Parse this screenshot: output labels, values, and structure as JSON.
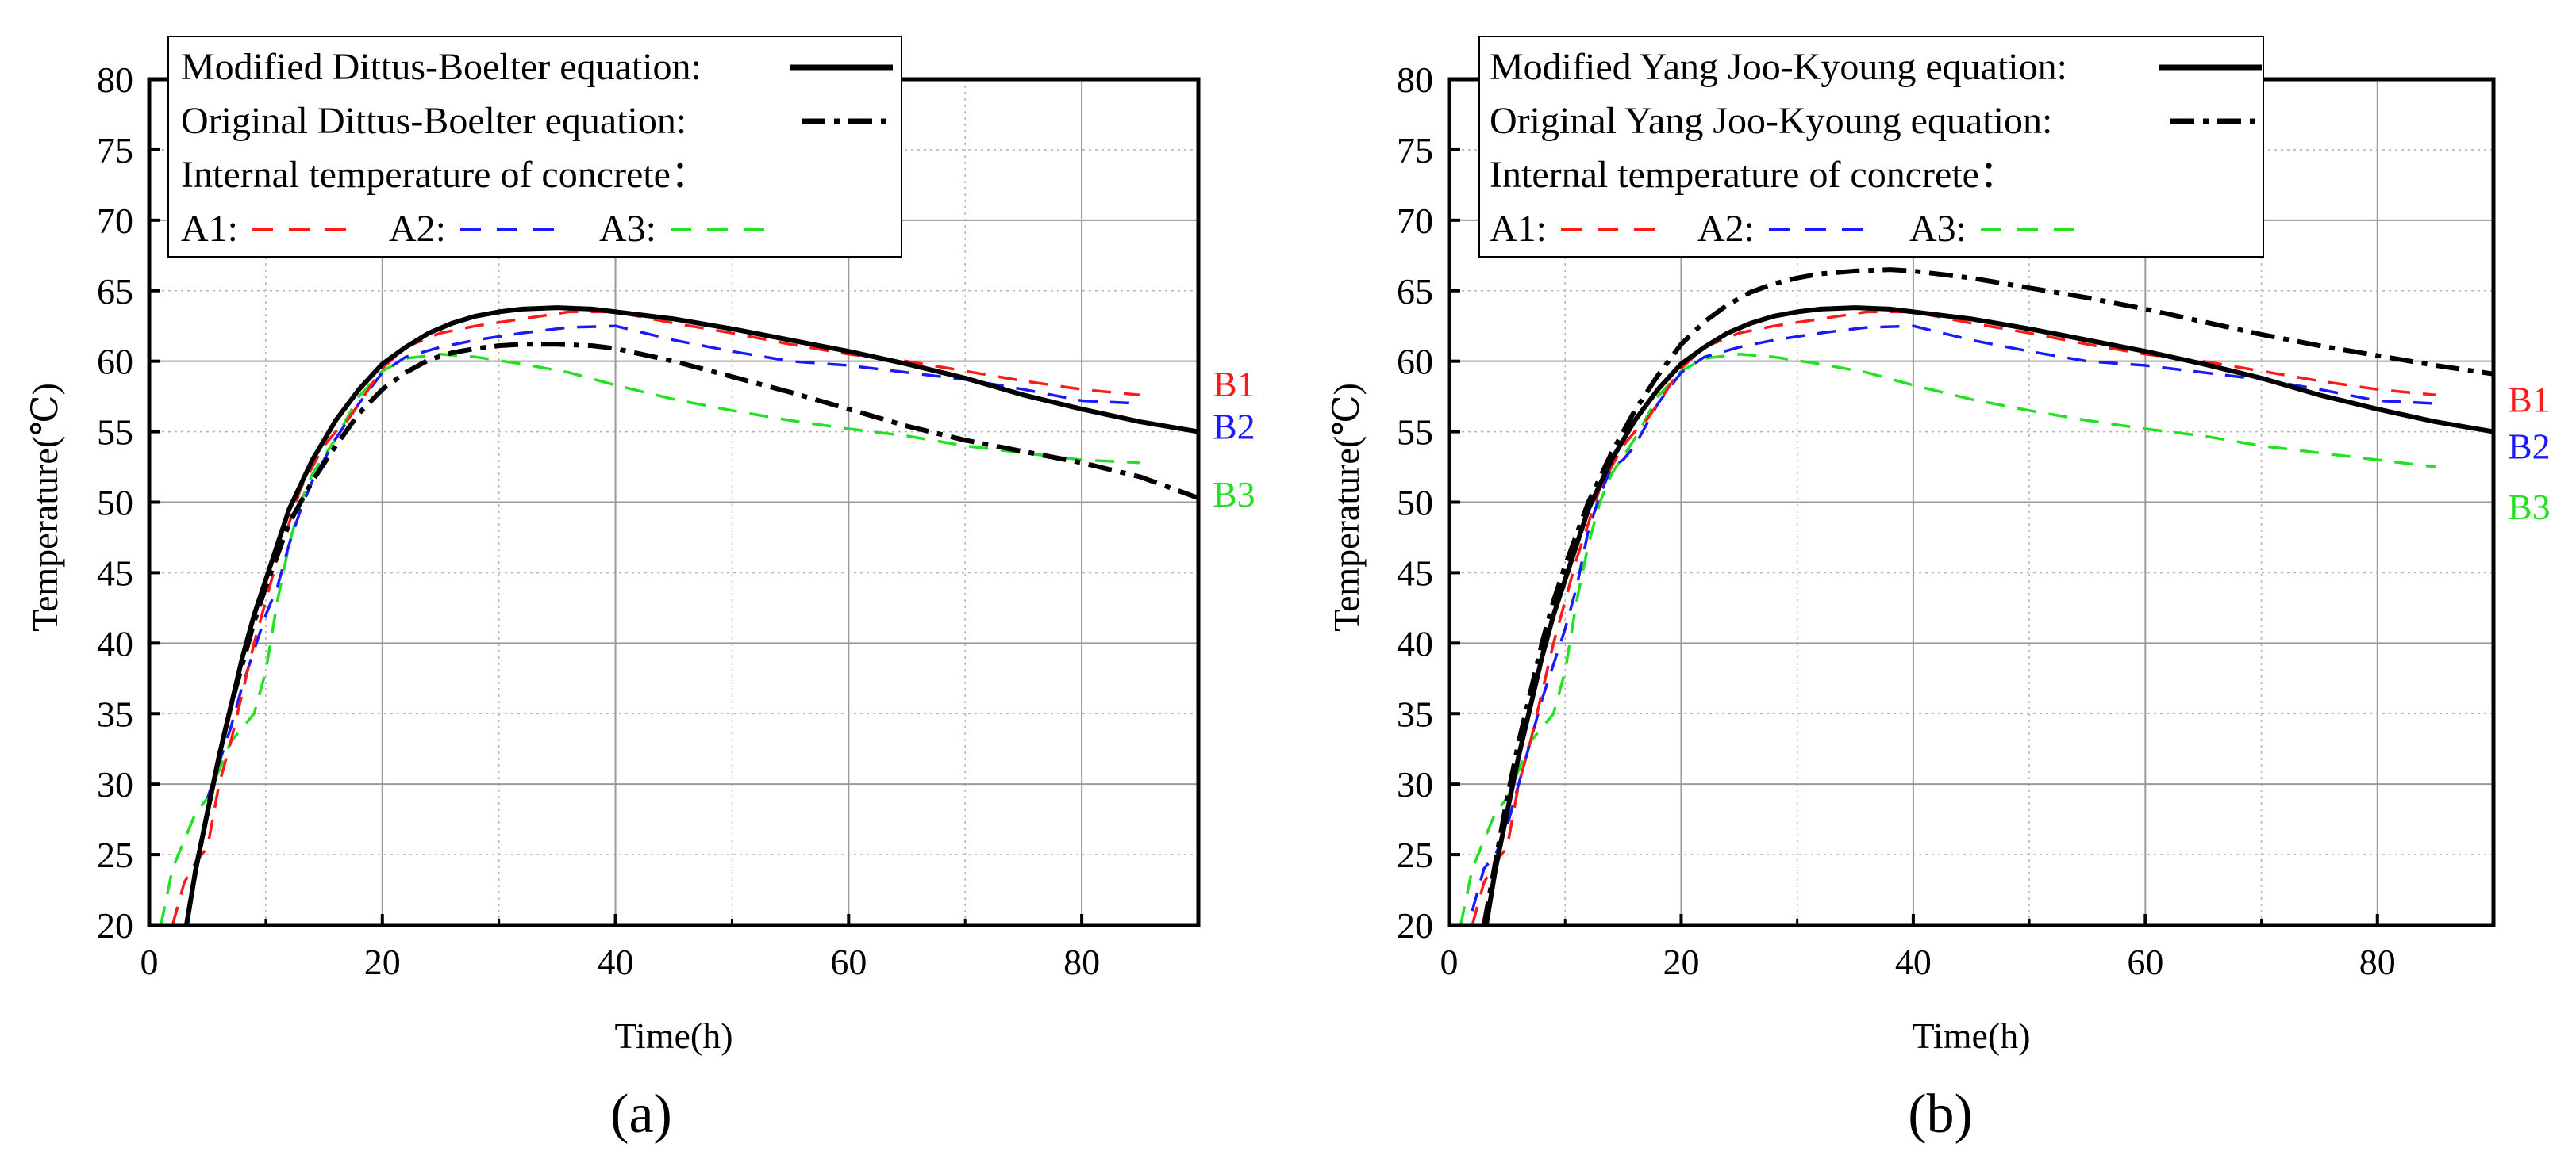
{
  "figure": {
    "panels": [
      "(a)",
      "(b)"
    ]
  },
  "colors": {
    "modified": "#000000",
    "original": "#000000",
    "A1": "#ff1a1a",
    "A2": "#1a1aff",
    "A3": "#22e022",
    "grid": "#b4b4b4",
    "frame": "#000000"
  },
  "chart_data": [
    {
      "type": "line",
      "panel_label": "(a)",
      "xlabel": "Time(h)",
      "ylabel": "Temperature(℃)",
      "xlim": [
        0,
        90
      ],
      "ylim": [
        20,
        80
      ],
      "xticks": [
        0,
        20,
        40,
        60,
        80
      ],
      "yticks": [
        20,
        25,
        30,
        35,
        40,
        45,
        50,
        55,
        60,
        65,
        70,
        75,
        80
      ],
      "grid": true,
      "legend": {
        "placement": "top-left",
        "entries": {
          "modified": "Modified Dittus-Boelter equation:",
          "original": "Original Dittus-Boelter equation:",
          "internal": "Internal temperature of concrete：",
          "A1": "A1:",
          "A2": "A2:",
          "A3": "A3:"
        }
      },
      "annotations": [
        {
          "text": "B1",
          "x": 93,
          "y": 58.4,
          "color": "#ff1a1a"
        },
        {
          "text": "B2",
          "x": 93,
          "y": 55.4,
          "color": "#1a1aff"
        },
        {
          "text": "B3",
          "x": 93,
          "y": 50.6,
          "color": "#22e022"
        }
      ],
      "series": [
        {
          "name": "Modified Dittus-Boelter equation",
          "key": "modified",
          "style": "solid",
          "x": [
            3.2,
            4,
            5,
            6,
            7,
            8,
            9,
            10,
            11,
            12,
            14,
            16,
            18,
            20,
            22,
            24,
            26,
            28,
            30,
            32,
            35,
            38,
            40,
            45,
            50,
            55,
            60,
            65,
            70,
            75,
            80,
            85,
            90
          ],
          "y": [
            20,
            24,
            28,
            32,
            35.5,
            39,
            42,
            44.5,
            47,
            49.5,
            53,
            55.8,
            58,
            59.8,
            61,
            62,
            62.7,
            63.2,
            63.5,
            63.7,
            63.8,
            63.7,
            63.5,
            63,
            62.3,
            61.5,
            60.7,
            59.8,
            58.8,
            57.6,
            56.6,
            55.7,
            55
          ]
        },
        {
          "name": "Original Dittus-Boelter equation",
          "key": "original",
          "style": "dashdot",
          "x": [
            3.2,
            4,
            5,
            6,
            7,
            8,
            9,
            10,
            12,
            14,
            16,
            18,
            20,
            22,
            24,
            26,
            28,
            30,
            32,
            35,
            38,
            40,
            45,
            50,
            55,
            60,
            65,
            70,
            75,
            80,
            85,
            90
          ],
          "y": [
            20,
            24,
            28,
            32,
            35.5,
            38.5,
            41.5,
            44,
            48.5,
            51.5,
            54,
            56.3,
            58,
            59.2,
            60.1,
            60.6,
            60.9,
            61.1,
            61.2,
            61.2,
            61.1,
            60.9,
            60,
            58.9,
            57.8,
            56.6,
            55.4,
            54.4,
            53.6,
            52.8,
            51.8,
            50.3
          ]
        },
        {
          "name": "A1",
          "key": "A1",
          "style": "dashed",
          "x": [
            2,
            3,
            4,
            5,
            6,
            7,
            8,
            9,
            10,
            11,
            12,
            13,
            14,
            15,
            16,
            17,
            18,
            20,
            22,
            25,
            28,
            32,
            36,
            40,
            45,
            50,
            55,
            60,
            65,
            70,
            75,
            80,
            85
          ],
          "y": [
            20,
            23,
            24.5,
            25.5,
            30,
            33,
            36.5,
            40,
            43,
            46,
            48.5,
            51,
            52.5,
            54,
            55,
            55.8,
            57,
            59.5,
            61,
            62,
            62.5,
            63,
            63.5,
            63.5,
            62.7,
            62,
            61.2,
            60.5,
            60,
            59.3,
            58.6,
            58,
            57.6
          ]
        },
        {
          "name": "A2",
          "key": "A2",
          "style": "dashed",
          "x": [
            5,
            6,
            7,
            8,
            9,
            10,
            11,
            12,
            13,
            14,
            15,
            16,
            18,
            20,
            22,
            25,
            28,
            32,
            36,
            40,
            45,
            50,
            55,
            60,
            65,
            70,
            75,
            80,
            85
          ],
          "y": [
            29,
            31.5,
            34,
            37,
            39.5,
            42,
            44,
            47,
            49.5,
            51.5,
            53,
            54.5,
            57,
            59.2,
            60.3,
            61,
            61.5,
            62,
            62.4,
            62.5,
            61.5,
            60.7,
            60,
            59.7,
            59.2,
            58.7,
            58,
            57.2,
            57
          ]
        },
        {
          "name": "A3",
          "key": "A3",
          "style": "dashed",
          "x": [
            1,
            2,
            3,
            4,
            5,
            6,
            7,
            8,
            9,
            10,
            11,
            12,
            13,
            14,
            16,
            18,
            20,
            22,
            25,
            28,
            32,
            36,
            40,
            45,
            50,
            55,
            60,
            65,
            70,
            75,
            80,
            85
          ],
          "y": [
            20,
            24,
            26,
            28,
            29,
            31,
            33,
            34,
            35,
            38,
            43,
            47,
            50,
            52,
            54.5,
            57.5,
            59.3,
            60.2,
            60.5,
            60.3,
            59.8,
            59.2,
            58.3,
            57.3,
            56.5,
            55.8,
            55.2,
            54.7,
            54,
            53.5,
            53,
            52.8
          ]
        }
      ]
    },
    {
      "type": "line",
      "panel_label": "(b)",
      "xlabel": "Time(h)",
      "ylabel": "Temperature(℃)",
      "xlim": [
        0,
        90
      ],
      "ylim": [
        20,
        80
      ],
      "xticks": [
        0,
        20,
        40,
        60,
        80
      ],
      "yticks": [
        20,
        25,
        30,
        35,
        40,
        45,
        50,
        55,
        60,
        65,
        70,
        75,
        80
      ],
      "grid": true,
      "legend": {
        "placement": "top-left",
        "entries": {
          "modified": "Modified Yang Joo-Kyoung equation:",
          "original": "Original Yang Joo-Kyoung equation:",
          "internal": "Internal temperature of concrete：",
          "A1": "A1:",
          "A2": "A2:",
          "A3": "A3:"
        }
      },
      "annotations": [
        {
          "text": "B1",
          "x": 93,
          "y": 57.3,
          "color": "#ff1a1a"
        },
        {
          "text": "B2",
          "x": 93,
          "y": 54.0,
          "color": "#1a1aff"
        },
        {
          "text": "B3",
          "x": 93,
          "y": 49.7,
          "color": "#22e022"
        }
      ],
      "series": [
        {
          "name": "Modified Yang Joo-Kyoung equation",
          "key": "modified",
          "style": "solid",
          "x": [
            3.2,
            4,
            5,
            6,
            7,
            8,
            9,
            10,
            11,
            12,
            14,
            16,
            18,
            20,
            22,
            24,
            26,
            28,
            30,
            32,
            35,
            38,
            40,
            45,
            50,
            55,
            60,
            65,
            70,
            75,
            80,
            85,
            90
          ],
          "y": [
            20,
            24,
            28,
            32,
            35.5,
            39,
            42,
            44.5,
            47,
            49.5,
            53,
            55.8,
            58,
            59.8,
            61,
            62,
            62.7,
            63.2,
            63.5,
            63.7,
            63.8,
            63.7,
            63.5,
            63,
            62.3,
            61.5,
            60.7,
            59.8,
            58.8,
            57.6,
            56.6,
            55.7,
            55
          ]
        },
        {
          "name": "Original Yang Joo-Kyoung equation",
          "key": "original",
          "style": "dashdot",
          "x": [
            3.0,
            4,
            5,
            6,
            7,
            8,
            9,
            10,
            12,
            14,
            16,
            18,
            20,
            22,
            24,
            26,
            28,
            30,
            32,
            35,
            38,
            40,
            45,
            50,
            55,
            60,
            65,
            70,
            75,
            80,
            85,
            90
          ],
          "y": [
            20,
            24.5,
            29,
            33,
            36.5,
            40,
            43,
            45.5,
            50,
            53.5,
            56.5,
            59,
            61.2,
            62.8,
            64,
            64.9,
            65.5,
            65.9,
            66.2,
            66.4,
            66.5,
            66.4,
            65.9,
            65.2,
            64.5,
            63.7,
            62.8,
            61.9,
            61.1,
            60.4,
            59.7,
            59.1
          ]
        },
        {
          "name": "A1",
          "key": "A1",
          "style": "dashed",
          "x": [
            2,
            3,
            4,
            5,
            6,
            7,
            8,
            9,
            10,
            11,
            12,
            13,
            14,
            15,
            16,
            17,
            18,
            20,
            22,
            25,
            28,
            32,
            36,
            40,
            45,
            50,
            55,
            60,
            65,
            70,
            75,
            80,
            85
          ],
          "y": [
            20,
            23,
            24.5,
            25.5,
            30,
            33,
            36.5,
            40,
            43,
            46,
            48.5,
            51,
            52.5,
            54,
            55,
            55.8,
            57,
            59.5,
            61,
            62,
            62.5,
            63,
            63.5,
            63.5,
            62.7,
            62,
            61.2,
            60.5,
            60,
            59.3,
            58.6,
            58,
            57.6
          ]
        },
        {
          "name": "A2",
          "key": "A2",
          "style": "dashed",
          "x": [
            2,
            3,
            4,
            5,
            6,
            7,
            8,
            9,
            10,
            11,
            12,
            13,
            14,
            15,
            16,
            18,
            20,
            22,
            25,
            28,
            32,
            36,
            40,
            45,
            50,
            55,
            60,
            65,
            70,
            75,
            80,
            85
          ],
          "y": [
            21,
            24,
            25,
            27,
            30,
            33,
            36,
            38.5,
            41,
            44,
            48,
            50.5,
            52.5,
            53,
            54,
            57,
            59.2,
            60.3,
            61,
            61.5,
            62,
            62.4,
            62.5,
            61.5,
            60.7,
            60,
            59.7,
            59.2,
            58.7,
            58,
            57.2,
            57
          ]
        },
        {
          "name": "A3",
          "key": "A3",
          "style": "dashed",
          "x": [
            1,
            2,
            3,
            4,
            5,
            6,
            7,
            8,
            9,
            10,
            11,
            12,
            13,
            14,
            16,
            18,
            20,
            22,
            25,
            28,
            32,
            36,
            40,
            45,
            50,
            55,
            60,
            65,
            70,
            75,
            80,
            85
          ],
          "y": [
            20,
            24,
            26,
            28,
            29,
            31,
            33,
            34,
            35,
            38,
            43,
            47,
            50,
            52,
            54.5,
            57.5,
            59.3,
            60.2,
            60.5,
            60.3,
            59.8,
            59.2,
            58.3,
            57.3,
            56.5,
            55.8,
            55.2,
            54.7,
            54,
            53.5,
            53,
            52.5
          ]
        }
      ]
    }
  ]
}
